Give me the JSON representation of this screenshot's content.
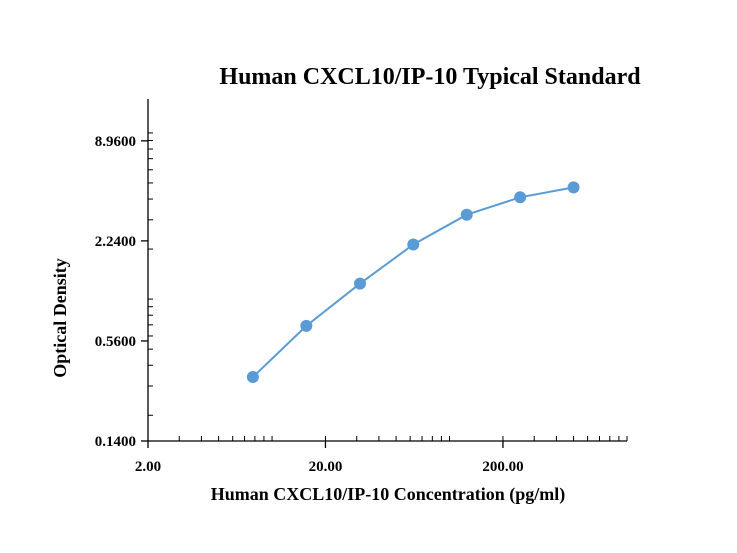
{
  "chart_data": {
    "type": "line",
    "title": "Human CXCL10/IP-10 Typical Standard",
    "xlabel": "Human CXCL10/IP-10 Concentration (pg/ml)",
    "ylabel": "Optical Density",
    "x_scale": "log",
    "y_scale": "log",
    "xlim": [
      2.0,
      1000.0
    ],
    "ylim": [
      0.14,
      16.0
    ],
    "x_ticks": [
      {
        "value": 2.0,
        "label": "2.00"
      },
      {
        "value": 20.0,
        "label": "20.00"
      },
      {
        "value": 200.0,
        "label": "200.00"
      }
    ],
    "y_ticks": [
      {
        "value": 0.14,
        "label": "0.1400"
      },
      {
        "value": 0.56,
        "label": "0.5600"
      },
      {
        "value": 2.24,
        "label": "2.2400"
      },
      {
        "value": 8.96,
        "label": "8.9600"
      }
    ],
    "grid": false,
    "legend": "none",
    "color": "#5b9bd5",
    "series": [
      {
        "x": [
          7.8,
          15.6,
          31.3,
          62.5,
          125,
          250,
          500
        ],
        "y": [
          0.34,
          0.69,
          1.24,
          2.13,
          3.22,
          4.1,
          4.7
        ]
      }
    ]
  }
}
